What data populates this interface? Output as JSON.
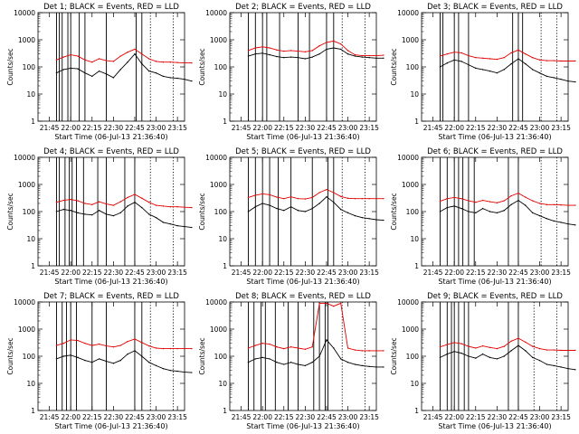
{
  "figure": {
    "panel_title_suffix": "BLACK = Events, RED = LLD",
    "xlabel": "Start Time (06-Jul-13 21:36:40)",
    "ylabel": "Counts/sec",
    "colors": {
      "events": "#000000",
      "lld": "#e00000"
    }
  },
  "chart_data": [
    {
      "type": "line",
      "title": "Det 1; BLACK = Events, RED = LLD",
      "xlabel": "Start Time (06-Jul-13 21:36:40)",
      "ylabel": "Counts/sec",
      "yscale": "log",
      "ylim": [
        1,
        10000
      ],
      "x_ticks": [
        "21:45",
        "22:00",
        "22:15",
        "22:30",
        "22:45",
        "23:00",
        "23:15"
      ],
      "y_ticks": [
        "1",
        "10",
        "100",
        "1000",
        "10000"
      ],
      "x_minutes": [
        0,
        5,
        10,
        15,
        20,
        25,
        30,
        35,
        40,
        45,
        50,
        55,
        60,
        65,
        70,
        75,
        80,
        85,
        90,
        95
      ],
      "series": [
        {
          "name": "BLACK = Events",
          "values": [
            60,
            80,
            90,
            85,
            60,
            45,
            70,
            55,
            40,
            80,
            150,
            300,
            130,
            70,
            60,
            45,
            40,
            38,
            35,
            30
          ]
        },
        {
          "name": "RED = LLD",
          "values": [
            180,
            230,
            280,
            250,
            180,
            150,
            200,
            170,
            160,
            250,
            350,
            450,
            300,
            200,
            160,
            150,
            150,
            145,
            140,
            140
          ]
        }
      ],
      "vertical_markers": [
        "21:50",
        "21:52",
        "21:54",
        "21:58",
        "22:00",
        "22:06",
        "22:10",
        "22:25",
        "22:46",
        "22:50"
      ],
      "dotted_markers": [
        "22:56",
        "23:12"
      ]
    },
    {
      "type": "line",
      "title": "Det 2; BLACK = Events, RED = LLD",
      "xlabel": "Start Time (06-Jul-13 21:36:40)",
      "ylabel": "Counts/sec",
      "yscale": "log",
      "ylim": [
        1,
        10000
      ],
      "x_ticks": [
        "21:45",
        "22:00",
        "22:15",
        "22:30",
        "22:45",
        "23:00",
        "23:15"
      ],
      "y_ticks": [
        "1",
        "10",
        "100",
        "1000",
        "10000"
      ],
      "x_minutes": [
        0,
        5,
        10,
        15,
        20,
        25,
        30,
        35,
        40,
        45,
        50,
        55,
        60,
        65,
        70,
        75,
        80,
        85,
        90,
        95
      ],
      "series": [
        {
          "name": "BLACK = Events",
          "values": [
            250,
            300,
            320,
            280,
            240,
            220,
            230,
            220,
            200,
            230,
            300,
            450,
            500,
            450,
            300,
            250,
            230,
            220,
            210,
            210
          ]
        },
        {
          "name": "RED = LLD",
          "values": [
            400,
            500,
            550,
            500,
            420,
            380,
            400,
            380,
            360,
            400,
            600,
            800,
            900,
            700,
            400,
            280,
            260,
            260,
            260,
            270
          ]
        }
      ],
      "vertical_markers": [
        "21:50",
        "21:55",
        "22:00",
        "22:03",
        "22:12",
        "22:25",
        "22:33",
        "22:45",
        "22:50"
      ],
      "dotted_markers": [
        "22:56",
        "23:12"
      ]
    },
    {
      "type": "line",
      "title": "Det 3; BLACK = Events, RED = LLD",
      "xlabel": "Start Time (06-Jul-13 21:36:40)",
      "ylabel": "Counts/sec",
      "yscale": "log",
      "ylim": [
        1,
        10000
      ],
      "x_ticks": [
        "21:45",
        "22:00",
        "22:15",
        "22:30",
        "22:45",
        "23:00",
        "23:15"
      ],
      "y_ticks": [
        "1",
        "10",
        "100",
        "1000",
        "10000"
      ],
      "x_minutes": [
        0,
        5,
        10,
        15,
        20,
        25,
        30,
        35,
        40,
        45,
        50,
        55,
        60,
        65,
        70,
        75,
        80,
        85,
        90,
        95
      ],
      "series": [
        {
          "name": "BLACK = Events",
          "values": [
            100,
            140,
            180,
            160,
            120,
            90,
            80,
            70,
            60,
            80,
            130,
            200,
            130,
            80,
            60,
            45,
            40,
            35,
            30,
            28
          ]
        },
        {
          "name": "RED = LLD",
          "values": [
            250,
            300,
            350,
            330,
            260,
            220,
            210,
            200,
            190,
            220,
            330,
            420,
            300,
            220,
            180,
            170,
            170,
            165,
            165,
            165
          ]
        }
      ],
      "vertical_markers": [
        "21:50",
        "21:52",
        "22:00",
        "22:03",
        "22:10",
        "22:41",
        "22:45",
        "22:48"
      ],
      "dotted_markers": [
        "23:01",
        "23:12"
      ]
    },
    {
      "type": "line",
      "title": "Det 4; BLACK = Events, RED = LLD",
      "xlabel": "Start Time (06-Jul-13 21:36:40)",
      "ylabel": "Counts/sec",
      "yscale": "log",
      "ylim": [
        1,
        10000
      ],
      "x_ticks": [
        "21:45",
        "22:00",
        "22:15",
        "22:30",
        "22:45",
        "23:00",
        "23:15"
      ],
      "y_ticks": [
        "1",
        "10",
        "100",
        "1000",
        "10000"
      ],
      "x_minutes": [
        0,
        5,
        10,
        15,
        20,
        25,
        30,
        35,
        40,
        45,
        50,
        55,
        60,
        65,
        70,
        75,
        80,
        85,
        90,
        95
      ],
      "series": [
        {
          "name": "BLACK = Events",
          "values": [
            100,
            120,
            110,
            90,
            80,
            75,
            110,
            80,
            70,
            90,
            160,
            220,
            140,
            80,
            60,
            40,
            35,
            30,
            28,
            26
          ]
        },
        {
          "name": "RED = LLD",
          "values": [
            220,
            260,
            280,
            250,
            200,
            180,
            230,
            190,
            170,
            230,
            330,
            430,
            310,
            220,
            170,
            160,
            150,
            150,
            145,
            140
          ]
        }
      ],
      "vertical_markers": [
        "21:50",
        "21:52",
        "21:56",
        "21:59",
        "22:01",
        "22:04",
        "22:09",
        "22:19",
        "22:25",
        "22:38",
        "22:45"
      ],
      "dotted_markers": [
        "22:56",
        "23:12"
      ]
    },
    {
      "type": "line",
      "title": "Det 5; BLACK = Events, RED = LLD",
      "xlabel": "Start Time (06-Jul-13 21:36:40)",
      "ylabel": "Counts/sec",
      "yscale": "log",
      "ylim": [
        1,
        10000
      ],
      "x_ticks": [
        "21:45",
        "22:00",
        "22:15",
        "22:30",
        "22:45",
        "23:00",
        "23:15"
      ],
      "y_ticks": [
        "1",
        "10",
        "100",
        "1000",
        "10000"
      ],
      "x_minutes": [
        0,
        5,
        10,
        15,
        20,
        25,
        30,
        35,
        40,
        45,
        50,
        55,
        60,
        65,
        70,
        75,
        80,
        85,
        90,
        95
      ],
      "series": [
        {
          "name": "BLACK = Events",
          "values": [
            100,
            150,
            200,
            170,
            130,
            110,
            150,
            110,
            100,
            130,
            200,
            350,
            220,
            120,
            90,
            70,
            60,
            55,
            50,
            48
          ]
        },
        {
          "name": "RED = LLD",
          "values": [
            330,
            400,
            450,
            420,
            340,
            300,
            350,
            300,
            290,
            330,
            500,
            650,
            500,
            360,
            310,
            300,
            300,
            300,
            300,
            300
          ]
        }
      ],
      "vertical_markers": [
        "21:50",
        "21:55",
        "22:00",
        "22:05",
        "22:11",
        "22:20",
        "22:35",
        "22:46",
        "22:50"
      ],
      "dotted_markers": [
        "22:56",
        "23:12"
      ]
    },
    {
      "type": "line",
      "title": "Det 6; BLACK = Events, RED = LLD",
      "xlabel": "Start Time (06-Jul-13 21:36:40)",
      "ylabel": "Counts/sec",
      "yscale": "log",
      "ylim": [
        1,
        10000
      ],
      "x_ticks": [
        "21:45",
        "22:00",
        "22:15",
        "22:30",
        "22:45",
        "23:00",
        "23:15"
      ],
      "y_ticks": [
        "1",
        "10",
        "100",
        "1000",
        "10000"
      ],
      "x_minutes": [
        0,
        5,
        10,
        15,
        20,
        25,
        30,
        35,
        40,
        45,
        50,
        55,
        60,
        65,
        70,
        75,
        80,
        85,
        90,
        95
      ],
      "series": [
        {
          "name": "BLACK = Events",
          "values": [
            100,
            140,
            160,
            130,
            100,
            90,
            130,
            100,
            90,
            110,
            180,
            260,
            170,
            90,
            70,
            55,
            45,
            40,
            35,
            32
          ]
        },
        {
          "name": "RED = LLD",
          "values": [
            240,
            300,
            330,
            300,
            250,
            220,
            260,
            230,
            210,
            250,
            380,
            480,
            340,
            250,
            200,
            180,
            180,
            175,
            170,
            170
          ]
        }
      ],
      "vertical_markers": [
        "21:50",
        "21:55",
        "22:00",
        "22:03",
        "22:06",
        "22:10",
        "22:14",
        "22:38",
        "22:45"
      ],
      "dotted_markers": [
        "23:01",
        "23:12"
      ]
    },
    {
      "type": "line",
      "title": "Det 7; BLACK = Events, RED = LLD",
      "xlabel": "Start Time (06-Jul-13 21:36:40)",
      "ylabel": "Counts/sec",
      "yscale": "log",
      "ylim": [
        1,
        10000
      ],
      "x_ticks": [
        "21:45",
        "22:00",
        "22:15",
        "22:30",
        "22:45",
        "23:00",
        "23:15"
      ],
      "y_ticks": [
        "1",
        "10",
        "100",
        "1000",
        "10000"
      ],
      "x_minutes": [
        0,
        5,
        10,
        15,
        20,
        25,
        30,
        35,
        40,
        45,
        50,
        55,
        60,
        65,
        70,
        75,
        80,
        85,
        90,
        95
      ],
      "series": [
        {
          "name": "BLACK = Events",
          "values": [
            80,
            100,
            110,
            90,
            70,
            60,
            80,
            65,
            55,
            70,
            120,
            160,
            100,
            60,
            45,
            35,
            30,
            28,
            26,
            25
          ]
        },
        {
          "name": "RED = LLD",
          "values": [
            250,
            300,
            400,
            380,
            300,
            250,
            280,
            240,
            220,
            250,
            350,
            430,
            320,
            240,
            200,
            190,
            190,
            190,
            190,
            190
          ]
        }
      ],
      "vertical_markers": [
        "21:50",
        "21:54",
        "21:57",
        "22:00",
        "22:04",
        "22:15",
        "22:25",
        "22:45",
        "22:50"
      ],
      "dotted_markers": [
        "22:56",
        "23:12"
      ]
    },
    {
      "type": "line",
      "title": "Det 8; BLACK = Events, RED = LLD",
      "xlabel": "Start Time (06-Jul-13 21:36:40)",
      "ylabel": "Counts/sec",
      "yscale": "log",
      "ylim": [
        1,
        10000
      ],
      "x_ticks": [
        "21:45",
        "22:00",
        "22:15",
        "22:30",
        "22:45",
        "23:00",
        "23:15"
      ],
      "y_ticks": [
        "1",
        "10",
        "100",
        "1000",
        "10000"
      ],
      "x_minutes": [
        0,
        5,
        10,
        15,
        20,
        25,
        30,
        35,
        40,
        45,
        50,
        55,
        60,
        65,
        70,
        75,
        80,
        85,
        90,
        95
      ],
      "series": [
        {
          "name": "BLACK = Events",
          "values": [
            60,
            80,
            90,
            80,
            60,
            50,
            60,
            50,
            45,
            60,
            100,
            400,
            200,
            80,
            60,
            50,
            45,
            42,
            40,
            40
          ]
        },
        {
          "name": "RED = LLD",
          "values": [
            200,
            250,
            300,
            280,
            220,
            190,
            220,
            200,
            180,
            220,
            9000,
            9000,
            7000,
            9000,
            200,
            170,
            160,
            160,
            160,
            160
          ]
        }
      ],
      "vertical_markers": [
        "21:50",
        "21:54",
        "21:59",
        "22:02",
        "22:09",
        "22:18",
        "22:25",
        "22:36",
        "22:40",
        "22:44",
        "22:46"
      ],
      "dotted_markers": [
        "22:56",
        "23:12"
      ]
    },
    {
      "type": "line",
      "title": "Det 9; BLACK = Events, RED = LLD",
      "xlabel": "Start Time (06-Jul-13 21:36:40)",
      "ylabel": "Counts/sec",
      "yscale": "log",
      "ylim": [
        1,
        10000
      ],
      "x_ticks": [
        "21:45",
        "22:00",
        "22:15",
        "22:30",
        "22:45",
        "23:00",
        "23:15"
      ],
      "y_ticks": [
        "1",
        "10",
        "100",
        "1000",
        "10000"
      ],
      "x_minutes": [
        0,
        5,
        10,
        15,
        20,
        25,
        30,
        35,
        40,
        45,
        50,
        55,
        60,
        65,
        70,
        75,
        80,
        85,
        90,
        95
      ],
      "series": [
        {
          "name": "BLACK = Events",
          "values": [
            90,
            120,
            150,
            130,
            100,
            85,
            120,
            90,
            80,
            100,
            160,
            250,
            160,
            90,
            70,
            50,
            45,
            40,
            35,
            32
          ]
        },
        {
          "name": "RED = LLD",
          "values": [
            220,
            270,
            320,
            290,
            230,
            200,
            240,
            210,
            190,
            230,
            360,
            460,
            330,
            230,
            190,
            170,
            170,
            165,
            165,
            165
          ]
        }
      ],
      "vertical_markers": [
        "21:50",
        "21:55",
        "21:58",
        "22:00",
        "22:03",
        "22:07",
        "22:10",
        "22:38",
        "22:45"
      ],
      "dotted_markers": [
        "22:56",
        "23:12"
      ]
    }
  ]
}
